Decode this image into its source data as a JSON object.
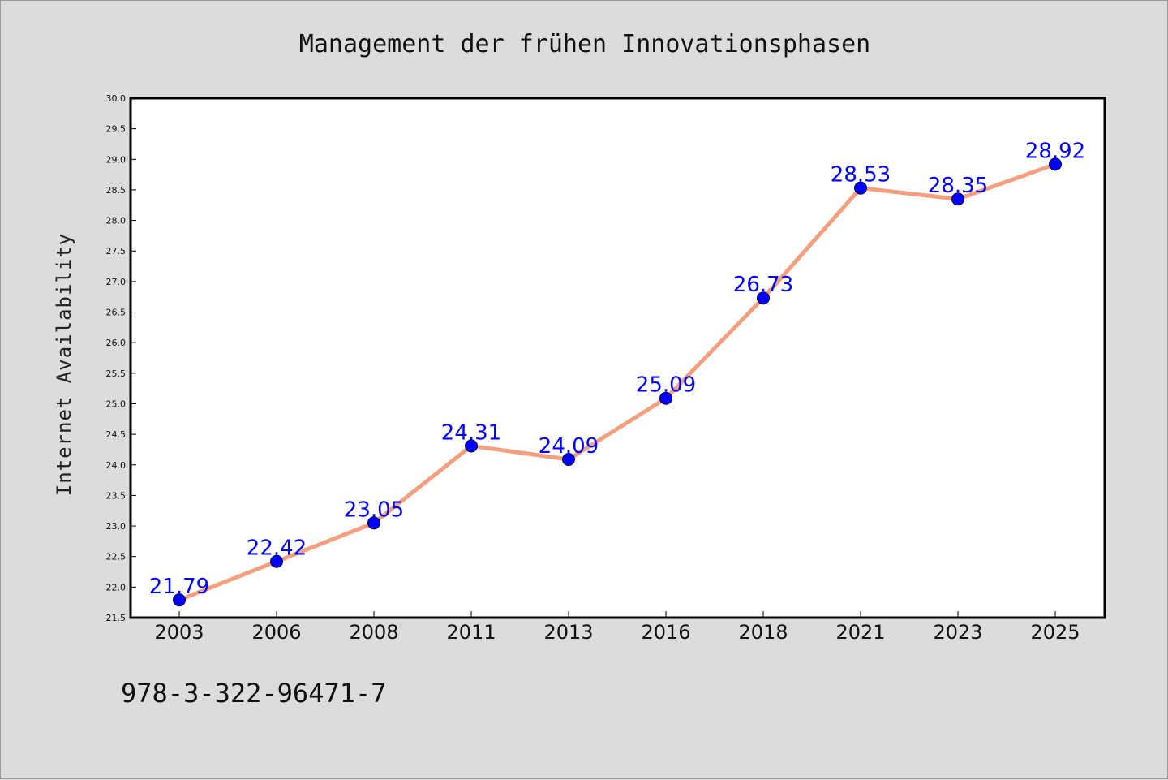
{
  "chart_data": {
    "type": "line",
    "title": "Management der frühen Innovationsphasen",
    "xlabel": "",
    "ylabel": "Internet Availability",
    "x": [
      "2003",
      "2006",
      "2008",
      "2011",
      "2013",
      "2016",
      "2018",
      "2021",
      "2023",
      "2025"
    ],
    "series": [
      {
        "values": [
          21.79,
          22.42,
          23.05,
          24.31,
          24.09,
          25.09,
          26.73,
          28.53,
          28.35,
          28.92
        ],
        "data_labels": [
          "21.79",
          "22.42",
          "23.05",
          "24.31",
          "24.09",
          "25.09",
          "26.73",
          "28.53",
          "28.35",
          "28.92"
        ],
        "line_color": "#f4a07f",
        "marker_color": "#0000ff"
      }
    ],
    "ylim": [
      21.5,
      30.0
    ],
    "yticks": [
      "21.5",
      "22.0",
      "22.5",
      "23.0",
      "23.5",
      "24.0",
      "24.5",
      "25.0",
      "25.5",
      "26.0",
      "26.5",
      "27.0",
      "27.5",
      "28.0",
      "28.5",
      "29.0",
      "29.5",
      "30.0"
    ],
    "grid": false,
    "legend": "none",
    "data_label_color": "#0000ff",
    "background": "#dcdcdc",
    "plot_background": "#ffffff"
  },
  "footnote": "978-3-322-96471-7"
}
